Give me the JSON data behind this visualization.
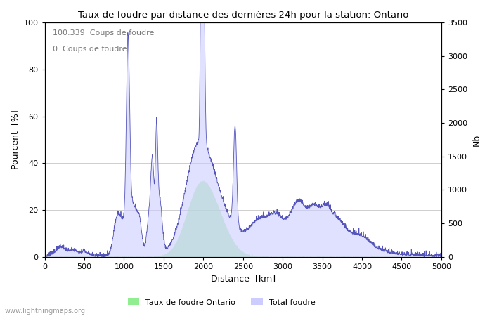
{
  "title": "Taux de foudre par distance des dernières 24h pour la station: Ontario",
  "xlabel": "Distance  [km]",
  "ylabel_left": "Pourcent  [%]",
  "ylabel_right": "Nb",
  "annotation_line1": "100.339  Coups de foudre",
  "annotation_line2": "0  Coups de foudre",
  "legend_label1": "Taux de foudre Ontario",
  "legend_label2": "Total foudre",
  "watermark": "www.lightningmaps.org",
  "xlim": [
    0,
    5000
  ],
  "ylim_left": [
    0,
    100
  ],
  "ylim_right": [
    0,
    3500
  ],
  "xticks": [
    0,
    500,
    1000,
    1500,
    2000,
    2500,
    3000,
    3500,
    4000,
    4500,
    5000
  ],
  "yticks_left": [
    0,
    20,
    40,
    60,
    80,
    100
  ],
  "yticks_right": [
    0,
    500,
    1000,
    1500,
    2000,
    2500,
    3000,
    3500
  ],
  "color_ontario": "#90EE90",
  "color_total": "#ccccff",
  "color_line": "#5555bb",
  "background_color": "#ffffff",
  "grid_color": "#bbbbbb"
}
